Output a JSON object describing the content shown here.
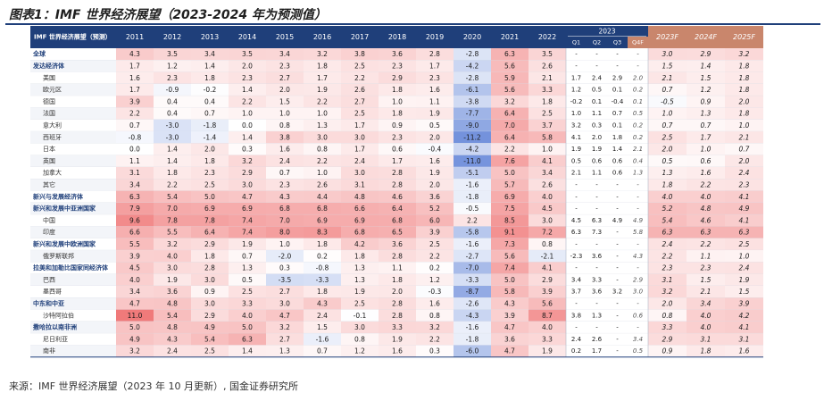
{
  "title": "图表1：IMF 世界经济展望（2023-2024 年为预测值）",
  "source": "来源：IMF 世界经济展望（2023 年 10 月更新）, 国金证券研究所",
  "colors": {
    "header_bg": "#1f3f7a",
    "forecast_header_bg": "#c9866c",
    "forecast_text": "#c9866c",
    "positive_max": "#f07a7a",
    "negative_max": "#5b7fd6"
  },
  "chart_data": {
    "type": "table",
    "title": "IMF 世界经济展望（2023-2024 年为预测值）",
    "stub_header": "IMF 世界经济展望（预测）",
    "columns": [
      "2011",
      "2012",
      "2013",
      "2014",
      "2015",
      "2016",
      "2017",
      "2018",
      "2019",
      "2020",
      "2021",
      "2022"
    ],
    "quarter_group": "2023",
    "quarters": [
      "Q1",
      "Q2",
      "Q3",
      "Q4F"
    ],
    "forecast_columns": [
      "2023F",
      "2024F",
      "2025F"
    ],
    "rows": [
      {
        "name": "全球",
        "bold": true,
        "annual": [
          4.3,
          3.5,
          3.4,
          3.5,
          3.4,
          3.2,
          3.8,
          3.6,
          2.8,
          -2.8,
          6.3,
          3.5
        ],
        "quarters": [
          "-",
          "-",
          "-",
          "-"
        ],
        "forecast": [
          3.0,
          2.9,
          3.2
        ]
      },
      {
        "name": "发达经济体",
        "bold": true,
        "annual": [
          1.7,
          1.2,
          1.4,
          2.0,
          2.3,
          1.8,
          2.5,
          2.3,
          1.7,
          -4.2,
          5.6,
          2.6
        ],
        "quarters": [
          "-",
          "-",
          "-",
          "-"
        ],
        "forecast": [
          1.5,
          1.4,
          1.8
        ]
      },
      {
        "name": "美国",
        "bold": false,
        "annual": [
          1.6,
          2.3,
          1.8,
          2.3,
          2.7,
          1.7,
          2.2,
          2.9,
          2.3,
          -2.8,
          5.9,
          2.1
        ],
        "quarters": [
          1.7,
          2.4,
          2.9,
          2.0
        ],
        "forecast": [
          2.1,
          1.5,
          1.8
        ]
      },
      {
        "name": "欧元区",
        "bold": false,
        "annual": [
          1.7,
          -0.9,
          -0.2,
          1.4,
          2.0,
          1.9,
          2.6,
          1.8,
          1.6,
          -6.1,
          5.6,
          3.3
        ],
        "quarters": [
          1.2,
          0.5,
          0.1,
          0.2
        ],
        "forecast": [
          0.7,
          1.2,
          1.8
        ]
      },
      {
        "name": "德国",
        "bold": false,
        "annual": [
          3.9,
          0.4,
          0.4,
          2.2,
          1.5,
          2.2,
          2.7,
          1.0,
          1.1,
          -3.8,
          3.2,
          1.8
        ],
        "quarters": [
          -0.2,
          0.1,
          -0.4,
          0.1
        ],
        "forecast": [
          -0.5,
          0.9,
          2.0
        ]
      },
      {
        "name": "法国",
        "bold": false,
        "annual": [
          2.2,
          0.4,
          0.7,
          1.0,
          1.0,
          1.0,
          2.5,
          1.8,
          1.9,
          -7.7,
          6.4,
          2.5
        ],
        "quarters": [
          1.0,
          1.1,
          0.7,
          0.5
        ],
        "forecast": [
          1.0,
          1.3,
          1.8
        ]
      },
      {
        "name": "意大利",
        "bold": false,
        "annual": [
          0.7,
          -3.0,
          -1.8,
          0.0,
          0.8,
          1.3,
          1.7,
          0.9,
          0.5,
          -9.0,
          7.0,
          3.7
        ],
        "quarters": [
          3.2,
          0.3,
          0.1,
          0.2
        ],
        "forecast": [
          0.7,
          0.7,
          1.0
        ]
      },
      {
        "name": "西班牙",
        "bold": false,
        "annual": [
          -0.8,
          -3.0,
          -1.4,
          1.4,
          3.8,
          3.0,
          3.0,
          2.3,
          2.0,
          -11.2,
          6.4,
          5.8
        ],
        "quarters": [
          4.1,
          2.0,
          1.8,
          0.2
        ],
        "forecast": [
          2.5,
          1.7,
          2.1
        ]
      },
      {
        "name": "日本",
        "bold": false,
        "annual": [
          0.0,
          1.4,
          2.0,
          0.3,
          1.6,
          0.8,
          1.7,
          0.6,
          -0.4,
          -4.2,
          2.2,
          1.0
        ],
        "quarters": [
          1.9,
          1.9,
          1.4,
          2.1
        ],
        "forecast": [
          2.0,
          1.0,
          0.7
        ]
      },
      {
        "name": "英国",
        "bold": false,
        "annual": [
          1.1,
          1.4,
          1.8,
          3.2,
          2.4,
          2.2,
          2.4,
          1.7,
          1.6,
          -11.0,
          7.6,
          4.1
        ],
        "quarters": [
          0.5,
          0.6,
          0.6,
          0.4
        ],
        "forecast": [
          0.5,
          0.6,
          2.0
        ]
      },
      {
        "name": "加拿大",
        "bold": false,
        "annual": [
          3.1,
          1.8,
          2.3,
          2.9,
          0.7,
          1.0,
          3.0,
          2.8,
          1.9,
          -5.1,
          5.0,
          3.4
        ],
        "quarters": [
          2.1,
          1.1,
          0.6,
          1.3
        ],
        "forecast": [
          1.3,
          1.6,
          2.4
        ]
      },
      {
        "name": "其它",
        "bold": false,
        "annual": [
          3.4,
          2.2,
          2.5,
          3.0,
          2.3,
          2.6,
          3.1,
          2.8,
          2.0,
          -1.6,
          5.7,
          2.6
        ],
        "quarters": [
          "-",
          "-",
          "-",
          "-"
        ],
        "forecast": [
          1.8,
          2.2,
          2.3
        ]
      },
      {
        "name": "新兴与发展经济体",
        "bold": true,
        "annual": [
          6.3,
          5.4,
          5.0,
          4.7,
          4.3,
          4.4,
          4.8,
          4.6,
          3.6,
          -1.8,
          6.9,
          4.0
        ],
        "quarters": [
          "-",
          "-",
          "-",
          "-"
        ],
        "forecast": [
          4.0,
          4.0,
          4.1
        ]
      },
      {
        "name": "新兴和发展中亚洲国家",
        "bold": true,
        "annual": [
          7.9,
          7.0,
          6.9,
          6.9,
          6.8,
          6.8,
          6.6,
          6.4,
          5.2,
          -0.5,
          7.5,
          4.5
        ],
        "quarters": [
          "-",
          "-",
          "-",
          "-"
        ],
        "forecast": [
          5.2,
          4.8,
          4.9
        ]
      },
      {
        "name": "中国",
        "bold": false,
        "annual": [
          9.6,
          7.8,
          7.8,
          7.4,
          7.0,
          6.9,
          6.9,
          6.8,
          6.0,
          2.2,
          8.5,
          3.0
        ],
        "quarters": [
          4.5,
          6.3,
          4.9,
          4.9
        ],
        "forecast": [
          5.4,
          4.6,
          4.1
        ]
      },
      {
        "name": "印度",
        "bold": false,
        "annual": [
          6.6,
          5.5,
          6.4,
          7.4,
          8.0,
          8.3,
          6.8,
          6.5,
          3.9,
          -5.8,
          9.1,
          7.2
        ],
        "quarters": [
          6.3,
          7.3,
          "-",
          5.8
        ],
        "forecast": [
          6.3,
          6.3,
          6.3
        ]
      },
      {
        "name": "新兴和发展中欧洲国家",
        "bold": true,
        "annual": [
          5.5,
          3.2,
          2.9,
          1.9,
          1.0,
          1.8,
          4.2,
          3.6,
          2.5,
          -1.6,
          7.3,
          0.8
        ],
        "quarters": [
          "-",
          "-",
          "-",
          "-"
        ],
        "forecast": [
          2.4,
          2.2,
          2.5
        ]
      },
      {
        "name": "俄罗斯联邦",
        "bold": false,
        "annual": [
          3.9,
          4.0,
          1.8,
          0.7,
          -2.0,
          0.2,
          1.8,
          2.8,
          2.2,
          -2.7,
          5.6,
          -2.1
        ],
        "quarters": [
          -2.3,
          3.6,
          "-",
          4.3
        ],
        "forecast": [
          2.2,
          1.1,
          1.0
        ]
      },
      {
        "name": "拉美和加勒比国家同经济体",
        "bold": true,
        "annual": [
          4.5,
          3.0,
          2.8,
          1.3,
          0.3,
          -0.8,
          1.3,
          1.1,
          0.2,
          -7.0,
          7.4,
          4.1
        ],
        "quarters": [
          "-",
          "-",
          "-",
          "-"
        ],
        "forecast": [
          2.3,
          2.3,
          2.4
        ]
      },
      {
        "name": "巴西",
        "bold": false,
        "annual": [
          4.0,
          1.9,
          3.0,
          0.5,
          -3.5,
          -3.3,
          1.3,
          1.8,
          1.2,
          -3.3,
          5.0,
          2.9
        ],
        "quarters": [
          3.4,
          3.3,
          "-",
          2.9
        ],
        "forecast": [
          3.1,
          1.5,
          1.9
        ]
      },
      {
        "name": "墨西哥",
        "bold": false,
        "annual": [
          3.4,
          3.6,
          0.9,
          2.5,
          2.7,
          1.8,
          1.9,
          2.0,
          -0.3,
          -8.7,
          5.8,
          3.9
        ],
        "quarters": [
          3.7,
          3.6,
          3.2,
          3.0
        ],
        "forecast": [
          3.2,
          2.1,
          1.5
        ]
      },
      {
        "name": "中东和中亚",
        "bold": true,
        "annual": [
          4.7,
          4.8,
          3.0,
          3.3,
          3.0,
          4.3,
          2.5,
          2.8,
          1.6,
          -2.6,
          4.3,
          5.6
        ],
        "quarters": [
          "-",
          "-",
          "-",
          "-"
        ],
        "forecast": [
          2.0,
          3.4,
          3.9
        ]
      },
      {
        "name": "沙特阿拉伯",
        "bold": false,
        "annual": [
          11.0,
          5.4,
          2.9,
          4.0,
          4.7,
          2.4,
          -0.1,
          2.8,
          0.8,
          -4.3,
          3.9,
          8.7
        ],
        "quarters": [
          3.8,
          1.3,
          "-",
          0.6
        ],
        "forecast": [
          0.8,
          4.0,
          4.2
        ]
      },
      {
        "name": "撒哈拉以南非洲",
        "bold": true,
        "annual": [
          5.0,
          4.8,
          4.9,
          5.0,
          3.2,
          1.5,
          3.0,
          3.3,
          3.2,
          -1.6,
          4.7,
          4.0
        ],
        "quarters": [
          "-",
          "-",
          "-",
          "-"
        ],
        "forecast": [
          3.3,
          4.0,
          4.1
        ]
      },
      {
        "name": "尼日利亚",
        "bold": false,
        "annual": [
          4.9,
          4.3,
          5.4,
          6.3,
          2.7,
          -1.6,
          0.8,
          1.9,
          2.2,
          -1.8,
          3.6,
          3.3
        ],
        "quarters": [
          2.4,
          2.6,
          "-",
          3.4
        ],
        "forecast": [
          2.9,
          3.1,
          3.1
        ]
      },
      {
        "name": "南非",
        "bold": false,
        "annual": [
          3.2,
          2.4,
          2.5,
          1.4,
          1.3,
          0.7,
          1.2,
          1.6,
          0.3,
          -6.0,
          4.7,
          1.9
        ],
        "quarters": [
          0.2,
          1.7,
          "-",
          0.5
        ],
        "forecast": [
          0.9,
          1.8,
          1.6
        ]
      }
    ]
  }
}
